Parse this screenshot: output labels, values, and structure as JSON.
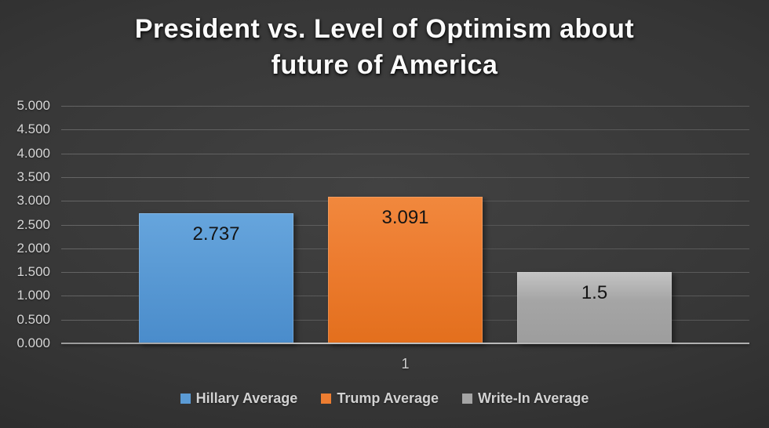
{
  "title": "President vs. Level of Optimism about future of America",
  "chart_data": {
    "type": "bar",
    "title": "President vs. Level of Optimism about future of America",
    "categories": [
      "1"
    ],
    "series": [
      {
        "name": "Hillary Average",
        "value": 2.737,
        "label": "2.737",
        "color": "#5B9BD5",
        "color_dark": "#4a8ccb",
        "color_light": "#66a5dd"
      },
      {
        "name": "Trump Average",
        "value": 3.091,
        "label": "3.091",
        "color": "#ED7D31",
        "color_dark": "#e36f1d",
        "color_light": "#f1883d"
      },
      {
        "name": "Write-In Average",
        "value": 1.5,
        "label": "1.5",
        "color": "#A5A5A5",
        "color_dark": "#9d9d9d",
        "color_light": "#c4c4c4"
      }
    ],
    "xlabel": "",
    "ylabel": "",
    "ylim": [
      0,
      5
    ],
    "y_tick_step": 0.5,
    "y_ticks": [
      "5.000",
      "4.500",
      "4.000",
      "3.500",
      "3.000",
      "2.500",
      "2.000",
      "1.500",
      "1.000",
      "0.500",
      "0.000"
    ],
    "grid": true,
    "legend_position": "bottom",
    "data_label_position": "inside-end",
    "background_theme": "dark-gradient"
  }
}
